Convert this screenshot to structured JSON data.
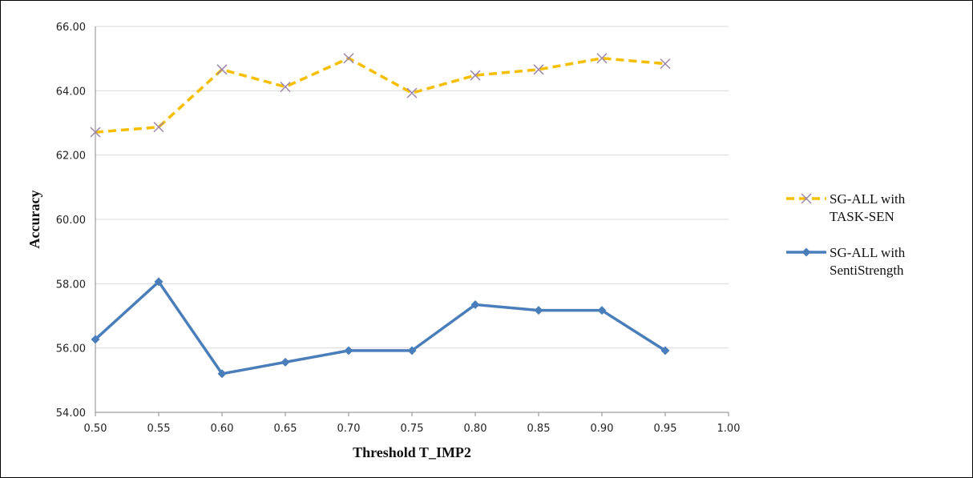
{
  "chart_data": {
    "type": "line",
    "xlabel": "Threshold T_IMP2",
    "ylabel": "Accuracy",
    "xlim": [
      0.5,
      1.0
    ],
    "ylim": [
      54,
      66
    ],
    "x_ticks": [
      "0.50",
      "0.55",
      "0.60",
      "0.65",
      "0.70",
      "0.75",
      "0.80",
      "0.85",
      "0.90",
      "0.95",
      "1.00"
    ],
    "y_ticks": [
      "54.00",
      "56.00",
      "58.00",
      "60.00",
      "62.00",
      "64.00",
      "66.00"
    ],
    "grid": "horizontal",
    "legend_position": "right",
    "x": [
      0.5,
      0.55,
      0.6,
      0.65,
      0.7,
      0.75,
      0.8,
      0.85,
      0.9,
      0.95
    ],
    "series": [
      {
        "name_lines": [
          "SG-ALL with",
          "TASK-SEN"
        ],
        "values": [
          62.71,
          62.87,
          64.66,
          64.12,
          65.01,
          63.93,
          64.48,
          64.66,
          65.01,
          64.84
        ],
        "color": "#F6BE00",
        "style": "dashed",
        "marker": "x",
        "marker_color": "#9E86A8"
      },
      {
        "name_lines": [
          "SG-ALL with",
          "SentiStrength"
        ],
        "values": [
          56.27,
          58.06,
          55.2,
          55.56,
          55.92,
          55.92,
          57.35,
          57.17,
          57.17,
          55.92
        ],
        "color": "#4A7EBB",
        "style": "solid",
        "marker": "diamond",
        "marker_color": "#4A7EBB"
      }
    ]
  }
}
